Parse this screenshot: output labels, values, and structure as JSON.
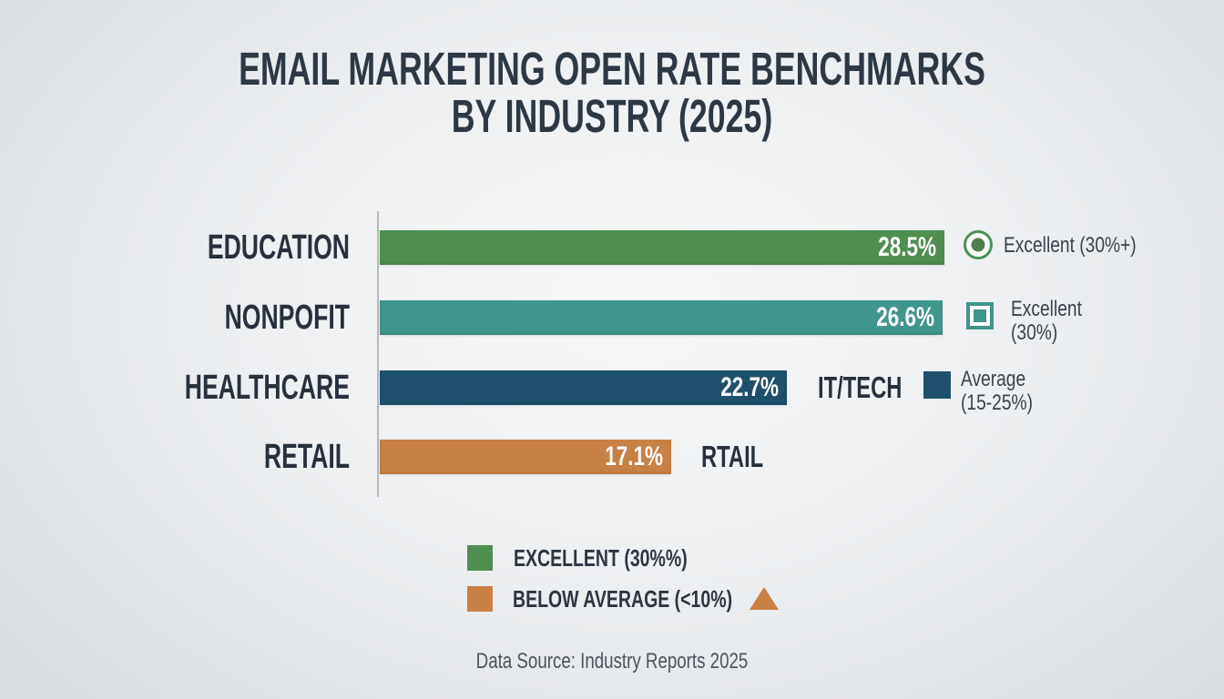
{
  "title": {
    "line1": "EMAIL MARKETING OPEN RATE BENCHMARKS",
    "line2": "BY INDUSTRY (2025)"
  },
  "chart_data": {
    "type": "bar",
    "orientation": "horizontal",
    "title": "EMAIL MARKETING OPEN RATE BENCHMARKS BY INDUSTRY (2025)",
    "categories": [
      "EDUCATION",
      "NONPOFIT",
      "HEALTHCARE",
      "RETAIL"
    ],
    "values": [
      28.5,
      26.6,
      22.7,
      17.1
    ],
    "value_labels": [
      "28.5%",
      "26.6%",
      "22.7%",
      "17.1%"
    ],
    "bar_colors": [
      "#4e8f50",
      "#3f968c",
      "#1e506b",
      "#c98045"
    ],
    "extra_labels": [
      "",
      "",
      "IT/TECH",
      "RTAIL"
    ],
    "xlim": [
      0,
      30
    ],
    "grid": false,
    "legend_position": "right-and-bottom"
  },
  "side_legend": {
    "items": [
      {
        "label": "Excellent (30%+)",
        "icon": "radio-circle-icon",
        "ring_color": "#4c9158",
        "dot_color": "#4e7e4d"
      },
      {
        "line1": "Excellent",
        "line2": "(30%)",
        "icon": "square-outline-icon",
        "color": "#3f968c"
      },
      {
        "line1": "Average",
        "line2": "(15-25%)",
        "icon": "square-filled-icon",
        "color": "#1e506b"
      }
    ]
  },
  "bottom_legend": {
    "items": [
      {
        "label": "EXCELLENT (30%%)",
        "color": "#4e8f50"
      },
      {
        "label": "BELOW AVERAGE (<10%)",
        "color": "#c98045",
        "marker": "triangle-icon",
        "marker_color": "#c98045"
      }
    ]
  },
  "footer": {
    "text": "Data Source: Industry Reports 2025"
  }
}
